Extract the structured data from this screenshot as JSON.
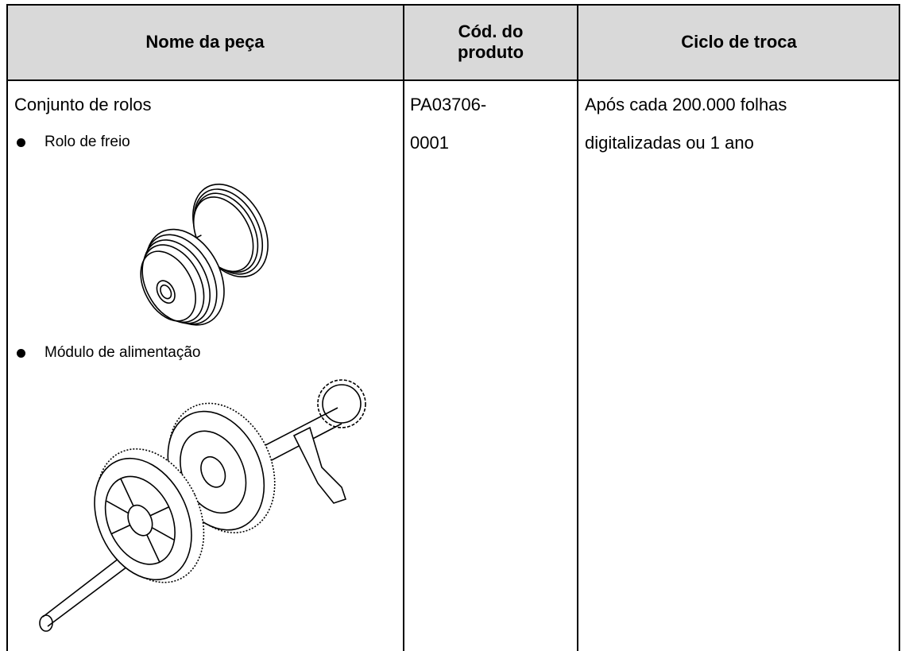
{
  "table": {
    "header": [
      [
        "Nome da peça"
      ],
      [
        "Cód. do",
        "produto"
      ],
      [
        "Ciclo de troca"
      ]
    ],
    "rows": [
      {
        "name": "Conjunto de rolos",
        "items": [
          "Rolo de freio",
          "Módulo de alimentação"
        ],
        "code": [
          "PA03706-",
          "0001"
        ],
        "cycle": [
          "Após cada 200.000 folhas",
          "digitalizadas ou 1 ano"
        ]
      }
    ]
  }
}
